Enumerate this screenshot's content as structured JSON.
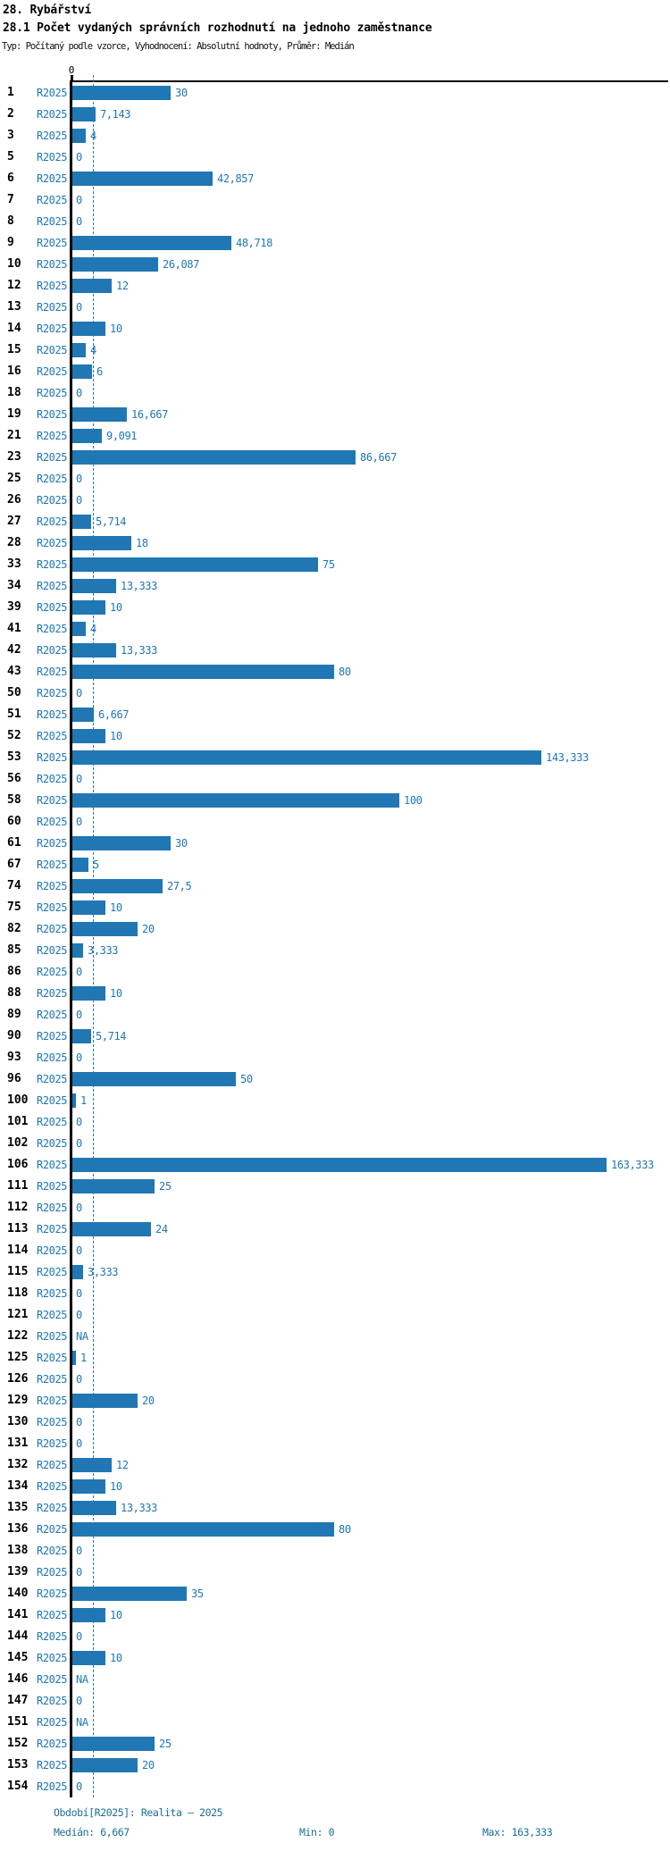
{
  "header": {
    "title": "28. Rybářství",
    "subtitle": "28.1 Počet vydaných správních rozhodnutí na jednoho zaměstnance",
    "meta": "Typ: Počítaný podle vzorce, Vyhodnocení: Absolutní hodnoty, Průměr: Medián"
  },
  "chart_data": {
    "type": "bar",
    "orientation": "horizontal",
    "series_label": "R2025",
    "x_tick_labels": [
      "0"
    ],
    "xlim": [
      0,
      163.333
    ],
    "median_line_value": 6.667,
    "bar_color": "#2077b4",
    "axis_color": "#000000",
    "grid": false,
    "rows": [
      {
        "id": "1",
        "value": 30,
        "label": "30"
      },
      {
        "id": "2",
        "value": 7.143,
        "label": "7,143"
      },
      {
        "id": "3",
        "value": 4,
        "label": "4"
      },
      {
        "id": "5",
        "value": 0,
        "label": "0"
      },
      {
        "id": "6",
        "value": 42.857,
        "label": "42,857"
      },
      {
        "id": "7",
        "value": 0,
        "label": "0"
      },
      {
        "id": "8",
        "value": 0,
        "label": "0"
      },
      {
        "id": "9",
        "value": 48.718,
        "label": "48,718"
      },
      {
        "id": "10",
        "value": 26.087,
        "label": "26,087"
      },
      {
        "id": "12",
        "value": 12,
        "label": "12"
      },
      {
        "id": "13",
        "value": 0,
        "label": "0"
      },
      {
        "id": "14",
        "value": 10,
        "label": "10"
      },
      {
        "id": "15",
        "value": 4,
        "label": "4"
      },
      {
        "id": "16",
        "value": 6,
        "label": "6"
      },
      {
        "id": "18",
        "value": 0,
        "label": "0"
      },
      {
        "id": "19",
        "value": 16.667,
        "label": "16,667"
      },
      {
        "id": "21",
        "value": 9.091,
        "label": "9,091"
      },
      {
        "id": "23",
        "value": 86.667,
        "label": "86,667"
      },
      {
        "id": "25",
        "value": 0,
        "label": "0"
      },
      {
        "id": "26",
        "value": 0,
        "label": "0"
      },
      {
        "id": "27",
        "value": 5.714,
        "label": "5,714"
      },
      {
        "id": "28",
        "value": 18,
        "label": "18"
      },
      {
        "id": "33",
        "value": 75,
        "label": "75"
      },
      {
        "id": "34",
        "value": 13.333,
        "label": "13,333"
      },
      {
        "id": "39",
        "value": 10,
        "label": "10"
      },
      {
        "id": "41",
        "value": 4,
        "label": "4"
      },
      {
        "id": "42",
        "value": 13.333,
        "label": "13,333"
      },
      {
        "id": "43",
        "value": 80,
        "label": "80"
      },
      {
        "id": "50",
        "value": 0,
        "label": "0"
      },
      {
        "id": "51",
        "value": 6.667,
        "label": "6,667"
      },
      {
        "id": "52",
        "value": 10,
        "label": "10"
      },
      {
        "id": "53",
        "value": 143.333,
        "label": "143,333"
      },
      {
        "id": "56",
        "value": 0,
        "label": "0"
      },
      {
        "id": "58",
        "value": 100,
        "label": "100"
      },
      {
        "id": "60",
        "value": 0,
        "label": "0"
      },
      {
        "id": "61",
        "value": 30,
        "label": "30"
      },
      {
        "id": "67",
        "value": 5,
        "label": "5"
      },
      {
        "id": "74",
        "value": 27.5,
        "label": "27,5"
      },
      {
        "id": "75",
        "value": 10,
        "label": "10"
      },
      {
        "id": "82",
        "value": 20,
        "label": "20"
      },
      {
        "id": "85",
        "value": 3.333,
        "label": "3,333"
      },
      {
        "id": "86",
        "value": 0,
        "label": "0"
      },
      {
        "id": "88",
        "value": 10,
        "label": "10"
      },
      {
        "id": "89",
        "value": 0,
        "label": "0"
      },
      {
        "id": "90",
        "value": 5.714,
        "label": "5,714"
      },
      {
        "id": "93",
        "value": 0,
        "label": "0"
      },
      {
        "id": "96",
        "value": 50,
        "label": "50"
      },
      {
        "id": "100",
        "value": 1,
        "label": "1"
      },
      {
        "id": "101",
        "value": 0,
        "label": "0"
      },
      {
        "id": "102",
        "value": 0,
        "label": "0"
      },
      {
        "id": "106",
        "value": 163.333,
        "label": "163,333"
      },
      {
        "id": "111",
        "value": 25,
        "label": "25"
      },
      {
        "id": "112",
        "value": 0,
        "label": "0"
      },
      {
        "id": "113",
        "value": 24,
        "label": "24"
      },
      {
        "id": "114",
        "value": 0,
        "label": "0"
      },
      {
        "id": "115",
        "value": 3.333,
        "label": "3,333"
      },
      {
        "id": "118",
        "value": 0,
        "label": "0"
      },
      {
        "id": "121",
        "value": 0,
        "label": "0"
      },
      {
        "id": "122",
        "value": null,
        "label": "NA"
      },
      {
        "id": "125",
        "value": 1,
        "label": "1"
      },
      {
        "id": "126",
        "value": 0,
        "label": "0"
      },
      {
        "id": "129",
        "value": 20,
        "label": "20"
      },
      {
        "id": "130",
        "value": 0,
        "label": "0"
      },
      {
        "id": "131",
        "value": 0,
        "label": "0"
      },
      {
        "id": "132",
        "value": 12,
        "label": "12"
      },
      {
        "id": "134",
        "value": 10,
        "label": "10"
      },
      {
        "id": "135",
        "value": 13.333,
        "label": "13,333"
      },
      {
        "id": "136",
        "value": 80,
        "label": "80"
      },
      {
        "id": "138",
        "value": 0,
        "label": "0"
      },
      {
        "id": "139",
        "value": 0,
        "label": "0"
      },
      {
        "id": "140",
        "value": 35,
        "label": "35"
      },
      {
        "id": "141",
        "value": 10,
        "label": "10"
      },
      {
        "id": "144",
        "value": 0,
        "label": "0"
      },
      {
        "id": "145",
        "value": 10,
        "label": "10"
      },
      {
        "id": "146",
        "value": null,
        "label": "NA"
      },
      {
        "id": "147",
        "value": 0,
        "label": "0"
      },
      {
        "id": "151",
        "value": null,
        "label": "NA"
      },
      {
        "id": "152",
        "value": 25,
        "label": "25"
      },
      {
        "id": "153",
        "value": 20,
        "label": "20"
      },
      {
        "id": "154",
        "value": 0,
        "label": "0"
      }
    ]
  },
  "footer": {
    "period": "Období[R2025]: Realita – 2025",
    "median": "Medián: 6,667",
    "min": "Min: 0",
    "max": "Max: 163,333"
  }
}
